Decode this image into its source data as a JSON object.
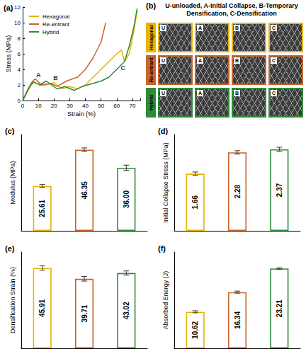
{
  "chart_data": [
    {
      "type": "line",
      "title": "(a)",
      "x_label": "Strain (%)",
      "y_label": "Stress (MPa)",
      "xlim": [
        0,
        75
      ],
      "xticks": [
        0,
        10,
        20,
        30,
        40,
        50,
        60,
        70
      ],
      "ylim": [
        0,
        12
      ],
      "yticks": [
        0,
        2,
        4,
        6,
        8,
        10,
        12
      ],
      "legend": "upper left",
      "grid": false,
      "series": [
        {
          "name": "Hexagonal",
          "color": "#E8B400",
          "x": [
            0,
            3,
            6,
            8,
            11,
            15,
            20,
            25,
            30,
            35,
            40,
            45,
            50,
            55,
            60,
            63,
            65,
            68,
            71,
            73
          ],
          "values": [
            0,
            1.2,
            2.1,
            2.3,
            2.0,
            2.0,
            2.3,
            1.5,
            1.8,
            1.5,
            2.0,
            3.0,
            4.0,
            5.0,
            6.0,
            6.5,
            5.0,
            6.0,
            9.0,
            11.5
          ]
        },
        {
          "name": "Re-entrant",
          "color": "#C8642D",
          "x": [
            0,
            3,
            6,
            8,
            12,
            18,
            22,
            28,
            32,
            35,
            40,
            45,
            50,
            53
          ],
          "values": [
            0,
            1.3,
            2.4,
            2.8,
            2.0,
            2.2,
            1.8,
            2.5,
            2.8,
            3.0,
            4.0,
            5.5,
            7.5,
            10.0
          ]
        },
        {
          "name": "Hybrid",
          "color": "#2E8B3A",
          "x": [
            0,
            3,
            5,
            7,
            11,
            15,
            22,
            27,
            33,
            38,
            45,
            50,
            55,
            60,
            65,
            68,
            71,
            73
          ],
          "values": [
            0,
            1.2,
            2.0,
            2.4,
            2.0,
            2.5,
            1.5,
            1.8,
            1.3,
            1.8,
            2.2,
            2.5,
            3.0,
            4.0,
            5.0,
            7.0,
            9.5,
            11.8
          ]
        }
      ],
      "annotations": [
        {
          "text": "A",
          "x": 10,
          "y": 3.3
        },
        {
          "text": "B",
          "x": 21,
          "y": 2.9
        },
        {
          "text": "C",
          "x": 64,
          "y": 4.2
        }
      ]
    },
    {
      "type": "bar",
      "title": "(c)",
      "y_label": "Modulus (MPa)",
      "categories": [
        null,
        null,
        null
      ],
      "values": [
        25.61,
        46.35,
        36.0
      ],
      "value_labels": [
        "25.61",
        "46.35",
        "36.00"
      ],
      "errors": [
        0.8,
        1.0,
        1.5
      ],
      "colors": [
        "#E8B400",
        "#C8642D",
        "#2E8B3A"
      ],
      "ylim": [
        0,
        55
      ],
      "tick_labels": false,
      "data_labels": true,
      "grid": false
    },
    {
      "type": "bar",
      "title": "(d)",
      "y_label": "Initial Collapse Stress (MPa)",
      "categories": [
        null,
        null,
        null
      ],
      "values": [
        1.66,
        2.28,
        2.37
      ],
      "errors": [
        0.05,
        0.05,
        0.06
      ],
      "colors": [
        "#E8B400",
        "#C8642D",
        "#2E8B3A"
      ],
      "ylim": [
        0,
        2.8
      ],
      "tick_labels": false,
      "data_labels": true,
      "grid": false
    },
    {
      "type": "bar",
      "title": "(e)",
      "y_label": "Densification Strain (%)",
      "categories": [
        null,
        null,
        null
      ],
      "values": [
        45.91,
        39.71,
        43.02
      ],
      "errors": [
        1.2,
        1.3,
        1.2
      ],
      "colors": [
        "#E8B400",
        "#C8642D",
        "#2E8B3A"
      ],
      "ylim": [
        0,
        55
      ],
      "tick_labels": false,
      "data_labels": true,
      "grid": false
    },
    {
      "type": "bar",
      "title": "(f)",
      "y_label": "Absorbed Energy (J)",
      "categories": [
        null,
        null,
        null
      ],
      "values": [
        10.62,
        16.34,
        23.21
      ],
      "errors": [
        0.3,
        0.3,
        0.2
      ],
      "colors": [
        "#E8B400",
        "#C8642D",
        "#2E8B3A"
      ],
      "ylim": [
        0,
        28
      ],
      "tick_labels": false,
      "data_labels": true,
      "grid": false
    }
  ],
  "photo_panel": {
    "label": "(b)",
    "title": "U-unloaded, A-Initial Collapse, B-Temporary Densification, C-Densification",
    "columns": [
      "U",
      "A",
      "B",
      "C"
    ],
    "rows": [
      {
        "name": "Hexagonal",
        "color": "#E8B400"
      },
      {
        "name": "Re-entrant",
        "color": "#C8642D"
      },
      {
        "name": "Hybrid",
        "color": "#2E8B3A"
      }
    ]
  }
}
